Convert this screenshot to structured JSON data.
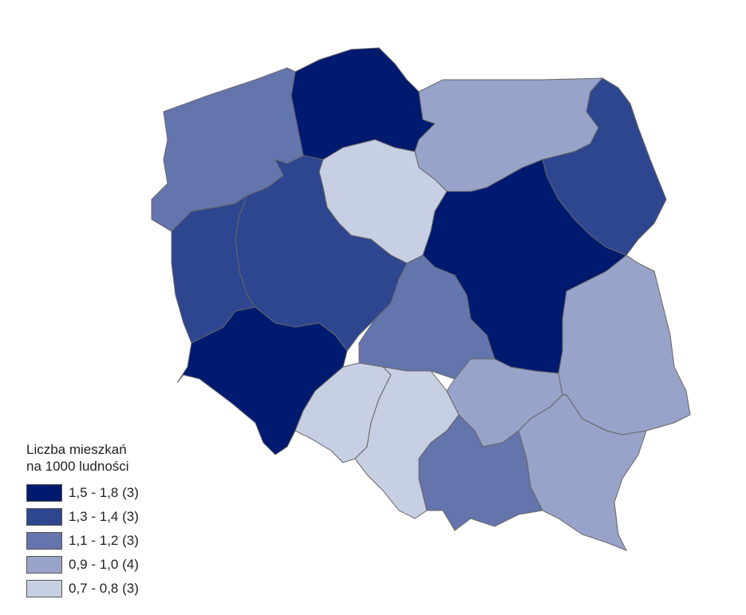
{
  "legend": {
    "title_line1": "Liczba mieszkań",
    "title_line2": "na 1000 ludności",
    "classes": [
      {
        "label": "1,5 - 1,8 (3)",
        "color": "#001a70"
      },
      {
        "label": "1,3 - 1,4 (3)",
        "color": "#2e4690"
      },
      {
        "label": "1,1 - 1,2 (3)",
        "color": "#6474ad"
      },
      {
        "label": "0,9 - 1,0 (4)",
        "color": "#97a3c9"
      },
      {
        "label": "0,7 - 0,8 (3)",
        "color": "#c7cfe3"
      }
    ]
  },
  "regions": [
    {
      "id": "pomorskie",
      "class": 0
    },
    {
      "id": "zachodniopomorskie",
      "class": 2
    },
    {
      "id": "warminsko-mazurskie",
      "class": 3
    },
    {
      "id": "podlaskie",
      "class": 1
    },
    {
      "id": "kujawsko-pomorskie",
      "class": 4
    },
    {
      "id": "mazowieckie",
      "class": 0
    },
    {
      "id": "lubuskie",
      "class": 1
    },
    {
      "id": "wielkopolskie",
      "class": 1
    },
    {
      "id": "lodzkie",
      "class": 2
    },
    {
      "id": "dolnoslaskie",
      "class": 0
    },
    {
      "id": "opolskie",
      "class": 4
    },
    {
      "id": "slaskie",
      "class": 4
    },
    {
      "id": "swietokrzyskie",
      "class": 3
    },
    {
      "id": "malopolskie",
      "class": 2
    },
    {
      "id": "lubelskie",
      "class": 3
    },
    {
      "id": "podkarpackie",
      "class": 3
    }
  ],
  "border_color": "#666666"
}
